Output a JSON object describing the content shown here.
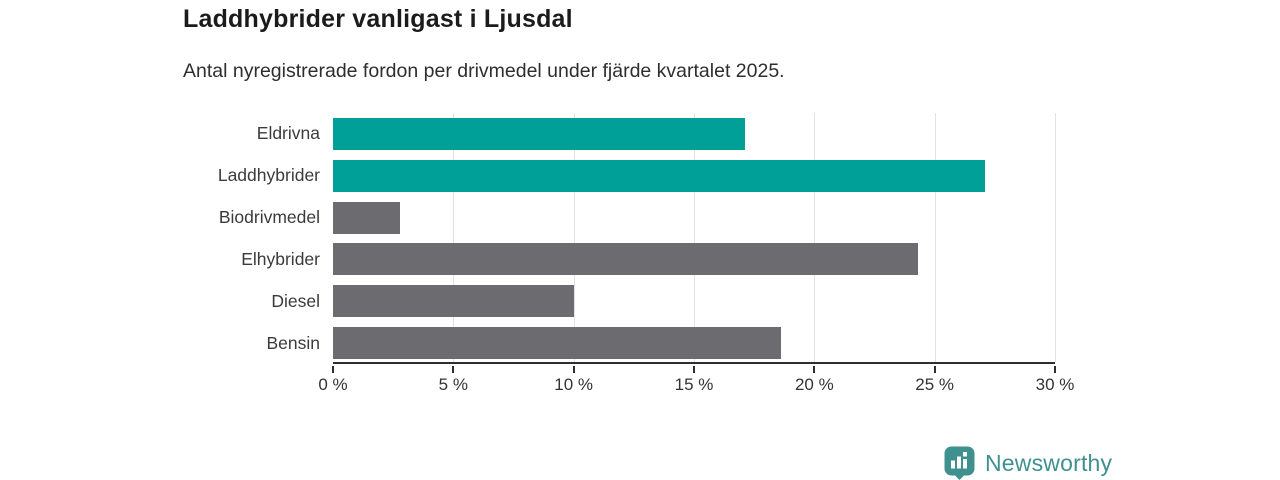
{
  "header": {
    "title": "Laddhybrider vanligast i Ljusdal",
    "subtitle": "Antal nyregistrerade fordon per drivmedel under fjärde kvartalet 2025."
  },
  "chart_data": {
    "type": "bar",
    "orientation": "horizontal",
    "title": "Laddhybrider vanligast i Ljusdal",
    "subtitle": "Antal nyregistrerade fordon per drivmedel under fjärde kvartalet 2025.",
    "categories": [
      "Eldrivna",
      "Laddhybrider",
      "Biodrivmedel",
      "Elhybrider",
      "Diesel",
      "Bensin"
    ],
    "values": [
      17.1,
      27.1,
      2.8,
      24.3,
      10,
      18.6
    ],
    "unit": "%",
    "xlim": [
      0,
      30
    ],
    "x_ticks": [
      0,
      5,
      10,
      15,
      20,
      25,
      30
    ],
    "x_tick_labels": [
      "0 %",
      "5 %",
      "10 %",
      "15 %",
      "20 %",
      "25 %",
      "30 %"
    ],
    "bar_colors": [
      "#00a099",
      "#00a099",
      "#6b6b70",
      "#6b6b70",
      "#6b6b70",
      "#6b6b70"
    ],
    "highlight_color": "#00a099",
    "default_color": "#6b6b70",
    "gridline_color": "#e2e2e2",
    "axis_color": "#2f2f2f",
    "grid": true,
    "legend": "none"
  },
  "footer": {
    "brand": "Newsworthy",
    "brand_color": "#3f918f",
    "logo_icon": "bar-chart-bubble-icon"
  }
}
